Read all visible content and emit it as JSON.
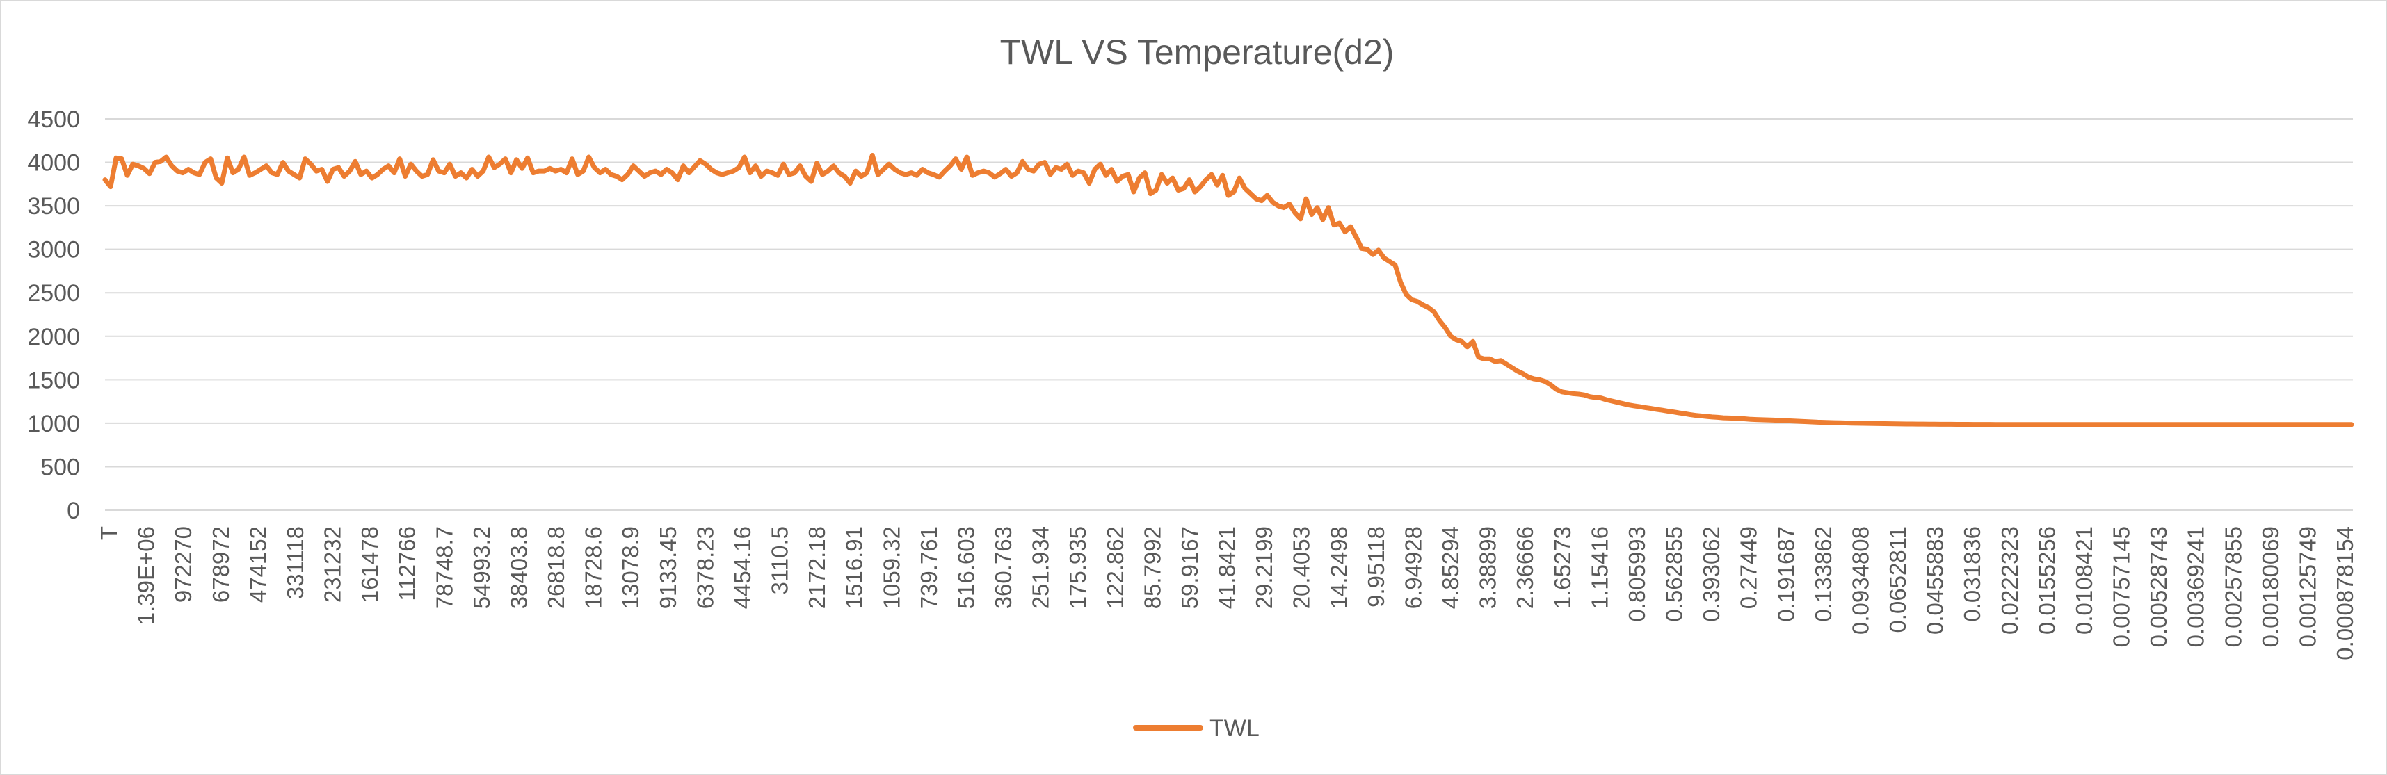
{
  "chart_data": {
    "type": "line",
    "title": "TWL VS Temperature(d2)",
    "xlabel": "",
    "ylabel": "",
    "ylim": [
      0,
      4500
    ],
    "yticks": [
      "0",
      "500",
      "1000",
      "1500",
      "2000",
      "2500",
      "3000",
      "3500",
      "4000",
      "4500"
    ],
    "x_tick_labels": [
      "T",
      "1.39E+06",
      "972270",
      "678972",
      "474152",
      "331118",
      "231232",
      "161478",
      "112766",
      "78748.7",
      "54993.2",
      "38403.8",
      "26818.8",
      "18728.6",
      "13078.9",
      "9133.45",
      "6378.23",
      "4454.16",
      "3110.5",
      "2172.18",
      "1516.91",
      "1059.32",
      "739.761",
      "516.603",
      "360.763",
      "251.934",
      "175.935",
      "122.862",
      "85.7992",
      "59.9167",
      "41.8421",
      "29.2199",
      "20.4053",
      "14.2498",
      "9.95118",
      "6.94928",
      "4.85294",
      "3.38899",
      "2.36666",
      "1.65273",
      "1.15416",
      "0.805993",
      "0.562855",
      "0.393062",
      "0.27449",
      "0.191687",
      "0.133862",
      "0.0934808",
      "0.0652811",
      "0.0455883",
      "0.031836",
      "0.0222323",
      "0.0155256",
      "0.0108421",
      "0.00757145",
      "0.00528743",
      "0.00369241",
      "0.00257855",
      "0.00180069",
      "0.00125749",
      "0.000878154"
    ],
    "grid": true,
    "legend_position": "bottom",
    "series": [
      {
        "name": "TWL",
        "color": "#ed7d31",
        "values": [
          3800,
          3720,
          4050,
          4040,
          3850,
          3980,
          3960,
          3930,
          3870,
          4000,
          4010,
          4060,
          3960,
          3900,
          3880,
          3920,
          3880,
          3860,
          4000,
          4040,
          3820,
          3760,
          4050,
          3880,
          3920,
          4060,
          3850,
          3880,
          3920,
          3960,
          3880,
          3860,
          4000,
          3900,
          3860,
          3820,
          4040,
          3980,
          3900,
          3920,
          3780,
          3920,
          3940,
          3840,
          3900,
          4010,
          3860,
          3900,
          3820,
          3860,
          3920,
          3960,
          3880,
          4040,
          3840,
          3980,
          3900,
          3840,
          3860,
          4030,
          3900,
          3880,
          3980,
          3840,
          3880,
          3820,
          3920,
          3840,
          3900,
          4060,
          3940,
          3980,
          4040,
          3880,
          4030,
          3930,
          4050,
          3880,
          3900,
          3900,
          3930,
          3900,
          3920,
          3880,
          4040,
          3860,
          3900,
          4060,
          3940,
          3880,
          3920,
          3860,
          3840,
          3800,
          3860,
          3960,
          3900,
          3840,
          3880,
          3900,
          3860,
          3920,
          3880,
          3800,
          3960,
          3880,
          3950,
          4020,
          3980,
          3920,
          3880,
          3860,
          3880,
          3900,
          3940,
          4060,
          3880,
          3960,
          3840,
          3900,
          3880,
          3850,
          3980,
          3860,
          3880,
          3960,
          3840,
          3780,
          3990,
          3860,
          3900,
          3960,
          3880,
          3840,
          3760,
          3900,
          3840,
          3880,
          4080,
          3860,
          3920,
          3980,
          3920,
          3880,
          3860,
          3880,
          3850,
          3920,
          3880,
          3860,
          3830,
          3900,
          3960,
          4040,
          3920,
          4060,
          3850,
          3880,
          3900,
          3880,
          3830,
          3870,
          3920,
          3840,
          3880,
          4010,
          3920,
          3900,
          3980,
          4000,
          3860,
          3940,
          3920,
          3980,
          3850,
          3900,
          3880,
          3760,
          3920,
          3980,
          3850,
          3920,
          3780,
          3840,
          3860,
          3660,
          3820,
          3880,
          3640,
          3680,
          3860,
          3760,
          3820,
          3680,
          3700,
          3800,
          3660,
          3720,
          3800,
          3860,
          3740,
          3850,
          3620,
          3660,
          3820,
          3700,
          3640,
          3580,
          3560,
          3620,
          3540,
          3500,
          3480,
          3520,
          3420,
          3350,
          3580,
          3400,
          3480,
          3340,
          3480,
          3280,
          3300,
          3200,
          3260,
          3140,
          3010,
          3000,
          2940,
          2990,
          2900,
          2860,
          2820,
          2620,
          2480,
          2420,
          2400,
          2360,
          2330,
          2280,
          2180,
          2100,
          2000,
          1960,
          1940,
          1880,
          1940,
          1760,
          1740,
          1740,
          1710,
          1720,
          1680,
          1640,
          1600,
          1570,
          1530,
          1510,
          1500,
          1480,
          1440,
          1390,
          1360,
          1350,
          1340,
          1335,
          1325,
          1305,
          1295,
          1290,
          1270,
          1255,
          1240,
          1225,
          1210,
          1200,
          1190,
          1180,
          1170,
          1160,
          1150,
          1140,
          1130,
          1120,
          1110,
          1100,
          1090,
          1085,
          1078,
          1072,
          1068,
          1062,
          1060,
          1058,
          1055,
          1050,
          1045,
          1042,
          1040,
          1038,
          1036,
          1033,
          1030,
          1027,
          1024,
          1021,
          1018,
          1015,
          1012,
          1010,
          1008,
          1006,
          1005,
          1003,
          1001,
          1000,
          999,
          998,
          997,
          996,
          995,
          994,
          993,
          992,
          991,
          991,
          990,
          990,
          989,
          989,
          988,
          988,
          988,
          987,
          987,
          987,
          986,
          986,
          986,
          986,
          985,
          985,
          985,
          985,
          985,
          985,
          985,
          985,
          985,
          985,
          985,
          985,
          985,
          985,
          985,
          985,
          985,
          985,
          985,
          985,
          985,
          985,
          985,
          985,
          985,
          985,
          985,
          985,
          985,
          985,
          985,
          985,
          985,
          985,
          985,
          985,
          985,
          985,
          985,
          985,
          985,
          985,
          985,
          985,
          985,
          985,
          985,
          985,
          985,
          985,
          985,
          985,
          985,
          985,
          985,
          985,
          985,
          985,
          985,
          985,
          985,
          985,
          985,
          985,
          985
        ]
      }
    ]
  }
}
